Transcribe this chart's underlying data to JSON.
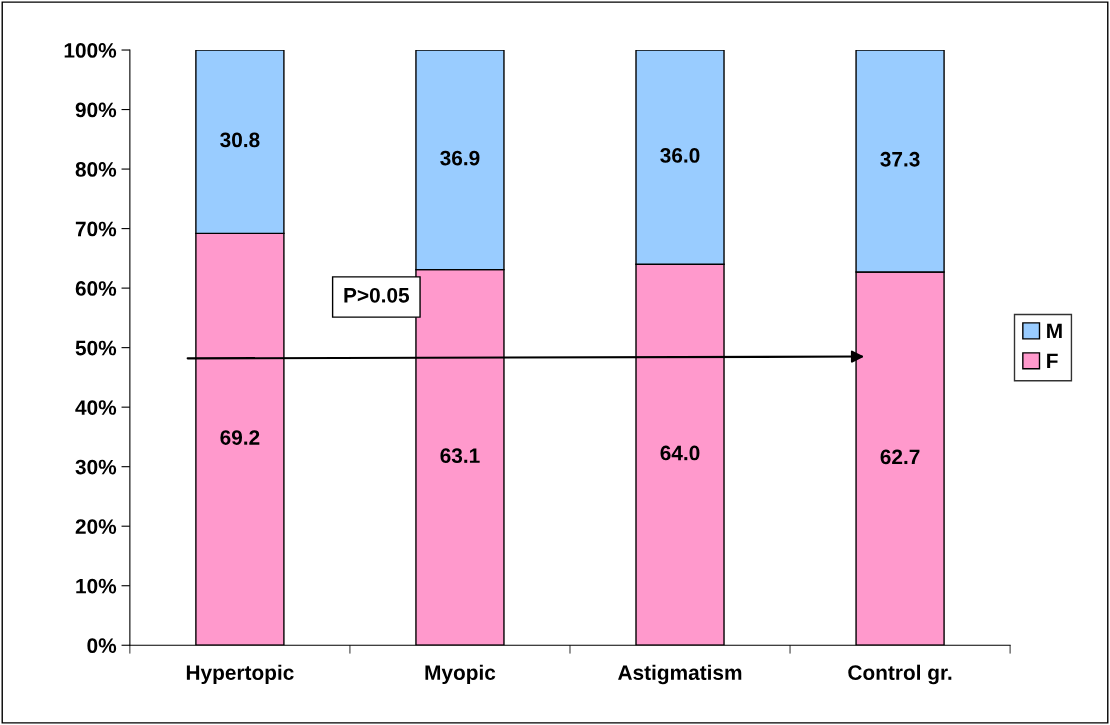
{
  "chart_data": {
    "type": "bar",
    "stacked": true,
    "categories": [
      "Hypertopic",
      "Myopic",
      "Astigmatism",
      "Control gr."
    ],
    "series": [
      {
        "name": "F",
        "color": "#ff99cc",
        "values": [
          69.2,
          63.1,
          64.0,
          62.7
        ],
        "value_labels": [
          "69.2",
          "63.1",
          "64.0",
          "62.7"
        ]
      },
      {
        "name": "M",
        "color": "#99ccff",
        "values": [
          30.8,
          36.9,
          36.0,
          37.3
        ],
        "value_labels": [
          "30.8",
          "36.9",
          "36.0",
          "37.3"
        ]
      }
    ],
    "ylim": [
      0,
      100
    ],
    "yticks": [
      {
        "value": 0,
        "label": "0%"
      },
      {
        "value": 10,
        "label": "10%"
      },
      {
        "value": 20,
        "label": "20%"
      },
      {
        "value": 30,
        "label": "30%"
      },
      {
        "value": 40,
        "label": "40%"
      },
      {
        "value": 50,
        "label": "50%"
      },
      {
        "value": 60,
        "label": "60%"
      },
      {
        "value": 70,
        "label": "70%"
      },
      {
        "value": 80,
        "label": "80%"
      },
      {
        "value": 90,
        "label": "90%"
      },
      {
        "value": 100,
        "label": "100%"
      }
    ],
    "annotations": [
      "P>0.05"
    ],
    "grid": false,
    "legend": "right"
  }
}
